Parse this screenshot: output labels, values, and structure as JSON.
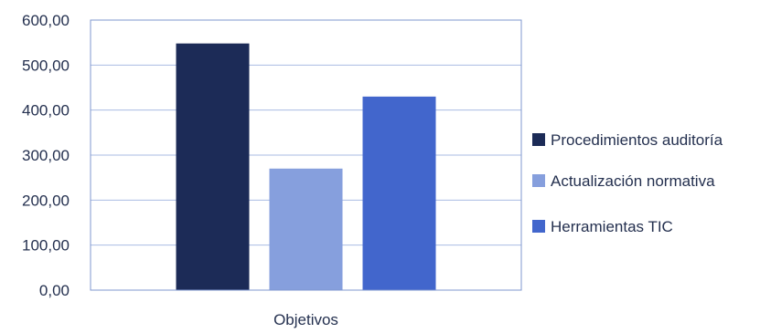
{
  "chart_data": {
    "type": "bar",
    "categories": [
      "Objetivos"
    ],
    "xlabel": "Objetivos",
    "ylabel": "",
    "title": "",
    "ylim": [
      0,
      600
    ],
    "yticks": [
      0,
      100,
      200,
      300,
      400,
      500,
      600
    ],
    "ytick_labels": [
      "0,00",
      "100,00",
      "200,00",
      "300,00",
      "400,00",
      "500,00",
      "600,00"
    ],
    "grid": true,
    "legend_position": "right",
    "series": [
      {
        "name": "Procedimientos auditoría",
        "values": [
          548
        ],
        "color": "#1c2b57"
      },
      {
        "name": "Actualización normativa",
        "values": [
          270
        ],
        "color": "#869fdd"
      },
      {
        "name": "Herramientas TIC",
        "values": [
          430
        ],
        "color": "#4266cc"
      }
    ]
  }
}
